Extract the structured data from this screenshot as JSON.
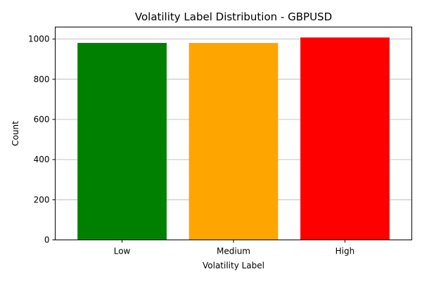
{
  "chart_data": {
    "type": "bar",
    "title": "Volatility Label Distribution - GBPUSD",
    "xlabel": "Volatility Label",
    "ylabel": "Count",
    "categories": [
      "Low",
      "Medium",
      "High"
    ],
    "values": [
      981,
      981,
      1008
    ],
    "colors": [
      "#008000",
      "#ffa500",
      "#ff0000"
    ],
    "ylim": [
      0,
      1060
    ],
    "yticks": [
      0,
      200,
      400,
      600,
      800,
      1000
    ],
    "grid": "y-axis only"
  }
}
